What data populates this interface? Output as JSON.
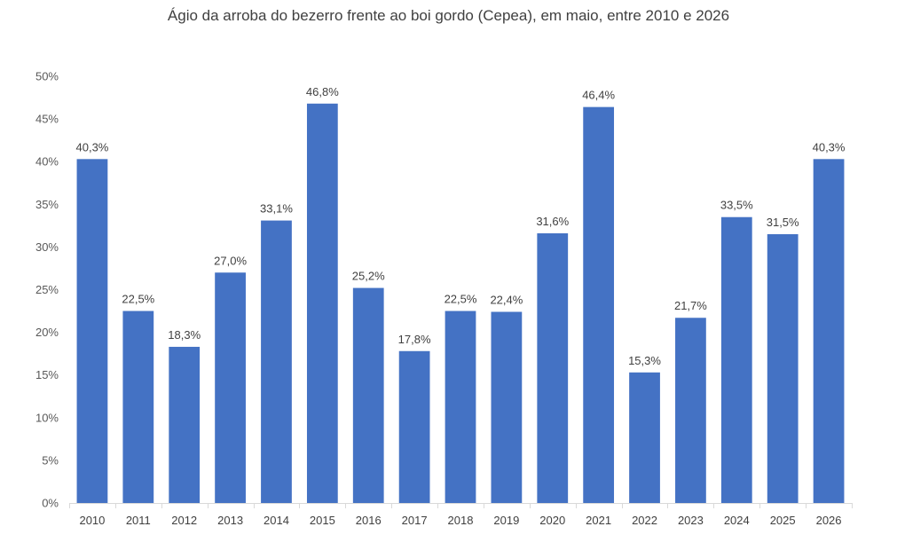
{
  "chart_data": {
    "type": "bar",
    "title": "Ágio da arroba do bezerro frente ao boi gordo (Cepea), em maio, entre 2010 e 2026",
    "xlabel": "",
    "ylabel": "",
    "categories": [
      "2010",
      "2011",
      "2012",
      "2013",
      "2014",
      "2015",
      "2016",
      "2017",
      "2018",
      "2019",
      "2020",
      "2021",
      "2022",
      "2023",
      "2024",
      "2025",
      "2026"
    ],
    "values": [
      40.3,
      22.5,
      18.3,
      27.0,
      33.1,
      46.8,
      25.2,
      17.8,
      22.5,
      22.4,
      31.6,
      46.4,
      15.3,
      21.7,
      33.5,
      31.5,
      40.3
    ],
    "data_labels": [
      "40,3%",
      "22,5%",
      "18,3%",
      "27,0%",
      "33,1%",
      "46,8%",
      "25,2%",
      "17,8%",
      "22,5%",
      "22,4%",
      "31,6%",
      "46,4%",
      "15,3%",
      "21,7%",
      "33,5%",
      "31,5%",
      "40,3%"
    ],
    "ylim": [
      0,
      50
    ],
    "yticks": [
      0,
      5,
      10,
      15,
      20,
      25,
      30,
      35,
      40,
      45,
      50
    ],
    "ytick_labels": [
      "0%",
      "5%",
      "10%",
      "15%",
      "20%",
      "25%",
      "30%",
      "35%",
      "40%",
      "45%",
      "50%"
    ],
    "grid": false,
    "legend": "none",
    "colors": {
      "bar": "#4472C4",
      "axis": "#D9D9D9",
      "text": "#404040"
    }
  }
}
